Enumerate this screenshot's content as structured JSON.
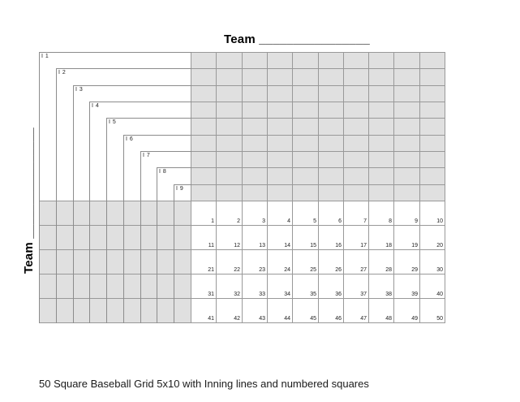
{
  "page": {
    "top_title": "Team ________________",
    "left_title": "Team ________________",
    "caption": "50 Square Baseball Grid 5x10 with Inning lines and numbered squares"
  },
  "colors": {
    "cell_fill": "#e0e0e0",
    "grid_line": "#999999",
    "bracket_line": "#8c8c8c",
    "text": "#000000"
  },
  "grid": {
    "inning_labels": [
      "I 1",
      "I 2",
      "I 3",
      "I 4",
      "I 5",
      "I 6",
      "I 7",
      "I 8",
      "I 9"
    ],
    "left_columns": 9,
    "right_columns": 10,
    "top_rows": 9,
    "bottom_rows": 5,
    "square_numbers": [
      1,
      2,
      3,
      4,
      5,
      6,
      7,
      8,
      9,
      10,
      11,
      12,
      13,
      14,
      15,
      16,
      17,
      18,
      19,
      20,
      21,
      22,
      23,
      24,
      25,
      26,
      27,
      28,
      29,
      30,
      31,
      32,
      33,
      34,
      35,
      36,
      37,
      38,
      39,
      40,
      41,
      42,
      43,
      44,
      45,
      46,
      47,
      48,
      49,
      50
    ]
  }
}
